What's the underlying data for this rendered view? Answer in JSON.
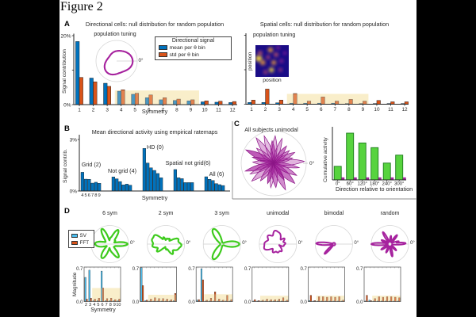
{
  "figure_label": "Figure 2",
  "colors": {
    "blue": "#0072BD",
    "orange": "#D95319",
    "cyan": "#4DBEEE",
    "green": "#57D33E",
    "green_edge": "#1B7A1B",
    "magenta": "#A6229E",
    "magenta_dark": "#8C1787",
    "shade": "#FAEECB",
    "axis": "#262626",
    "heatmap_bg": "#1A0C86"
  },
  "panels": {
    "A": {
      "label": "A",
      "left_title": "Directional cells: null distribution for random population",
      "right_title": "Spatial cells: null distribution for random population",
      "ylabel": "Signal contribution",
      "xlabel": "Symmetry",
      "inset_left": {
        "title": "population tuning",
        "zero_label": "0°"
      },
      "legend": {
        "title": "Directional signal",
        "items": [
          {
            "label": "mean per θ bin",
            "color": "#0072BD"
          },
          {
            "label": "std per θ bin",
            "color": "#D95319"
          }
        ]
      },
      "inset_right": {
        "title": "population tuning",
        "xlabel": "position",
        "ylabel": "position"
      }
    },
    "B": {
      "label": "B",
      "title": "Mean directional activity using empirical ratemaps",
      "ylabel": "Signal contrib.",
      "xlabel": "Symmetry"
    },
    "C": {
      "label": "C",
      "polar_title": "All subjects unimodal",
      "zero_label": "0°",
      "ylabel": "Cumulative activity",
      "xlabel": "Direction relative to orientation"
    },
    "D": {
      "label": "D",
      "legend": [
        {
          "label": "SV",
          "color": "#4DBEEE"
        },
        {
          "label": "FFT",
          "color": "#D95319"
        }
      ],
      "subplots": [
        "6 sym",
        "2 sym",
        "3 sym",
        "unimodal",
        "bimodal",
        "random"
      ],
      "zero_label": "0°",
      "ylabel": "Magnitude",
      "xlabel": "Symmetry"
    }
  },
  "chart_data": [
    {
      "id": "A_left",
      "type": "bar",
      "title": "Directional cells: null distribution for random population",
      "categories": [
        1,
        2,
        3,
        4,
        5,
        6,
        7,
        8,
        9,
        10,
        11,
        12
      ],
      "series": [
        {
          "name": "mean per θ bin",
          "color": "#0072BD",
          "values": [
            18.3,
            7.7,
            6.2,
            3.9,
            3.0,
            2.0,
            1.4,
            1.2,
            1.1,
            0.8,
            0.7,
            0.6
          ]
        },
        {
          "name": "std per θ bin",
          "color": "#D95319",
          "values": [
            7.9,
            6.6,
            5.3,
            4.3,
            3.3,
            2.8,
            2.0,
            1.6,
            1.4,
            1.1,
            1.0,
            0.9
          ]
        }
      ],
      "xlabel": "Symmetry",
      "ylabel": "Signal contribution",
      "ylim": [
        0,
        20
      ],
      "yticks": [
        "0%",
        "20%"
      ],
      "shade": {
        "from": 3.55,
        "to": 9.6,
        "top": 4.1
      }
    },
    {
      "id": "A_right",
      "type": "bar",
      "title": "Spatial cells: null distribution for random population",
      "categories": [
        1,
        2,
        3,
        4,
        5,
        6,
        7,
        8,
        9,
        10,
        11,
        12
      ],
      "series": [
        {
          "name": "mean per θ bin",
          "color": "#0072BD",
          "values": [
            0.5,
            0.5,
            0.4,
            0.3,
            0.3,
            0.3,
            0.3,
            0.2,
            0.2,
            0.2,
            0.2,
            0.2
          ]
        },
        {
          "name": "std per θ bin",
          "color": "#D95319",
          "values": [
            1.2,
            4.4,
            1.2,
            3.1,
            0.9,
            2.1,
            0.9,
            1.4,
            0.9,
            1.1,
            0.7,
            0.7
          ]
        }
      ],
      "ylim": [
        0,
        20
      ],
      "shade": {
        "from": 3.55,
        "to": 9.4,
        "top": 3.0
      }
    },
    {
      "id": "B",
      "type": "grouped-bar",
      "title": "Mean directional activity using empirical ratemaps",
      "sub_categories": [
        4,
        5,
        6,
        7,
        8,
        9
      ],
      "groups": [
        {
          "name": "Grid (2)",
          "values": [
            1.09,
            0.69,
            0.68,
            0.46,
            0.51,
            0.45
          ]
        },
        {
          "name": "Not grid (4)",
          "values": [
            0.82,
            0.71,
            0.55,
            0.36,
            0.4,
            0.34
          ]
        },
        {
          "name": "HD (0)",
          "values": [
            2.48,
            1.63,
            1.35,
            1.2,
            1.02,
            0.77
          ]
        },
        {
          "name": "Spatial not grid(6)",
          "values": [
            1.25,
            0.77,
            0.72,
            0.49,
            0.49,
            0.49
          ]
        },
        {
          "name": "All (6)",
          "values": [
            0.83,
            0.68,
            0.61,
            0.43,
            0.37,
            0.32
          ]
        }
      ],
      "xlabel": "Symmetry",
      "ylabel": "Signal contrib.",
      "ylim": [
        0,
        3
      ],
      "yticks": [
        "0%",
        "3%"
      ],
      "bar_color": "#0072BD"
    },
    {
      "id": "C",
      "type": "bar",
      "title": "All subjects unimodal",
      "categories": [
        "0°",
        "60°",
        "120°",
        "180°",
        "240°",
        "300°"
      ],
      "series": [
        {
          "name": "cumulative activity",
          "color": "#57D33E",
          "values": [
            0.29,
            1.0,
            0.79,
            0.69,
            0.36,
            0.53
          ]
        },
        {
          "name": "unimodal",
          "color": "#A6229E",
          "values": [
            0.05,
            0.05,
            0.05,
            0.05,
            0.05,
            0.05
          ]
        }
      ],
      "xlabel": "Direction relative to orientation",
      "ylabel": "Cumulative activity",
      "ylim": [
        0,
        1.1
      ]
    },
    {
      "id": "D0",
      "type": "bar",
      "title": "6 sym",
      "categories": [
        2,
        3,
        4,
        5,
        6,
        7,
        8,
        9,
        10
      ],
      "series": [
        {
          "name": "SV",
          "color": "#4DBEEE",
          "values": [
            0.5,
            0.65,
            0.02,
            0.02,
            0.63,
            0.02,
            0.02,
            0.02,
            0.02
          ]
        },
        {
          "name": "FFT",
          "color": "#D95319",
          "values": [
            0.05,
            0.07,
            0.05,
            0.07,
            0.28,
            0.06,
            0.07,
            0.04,
            0.05
          ]
        }
      ],
      "xlabel": "Symmetry",
      "ylabel": "Magnitude",
      "ylim": [
        0,
        0.7
      ],
      "yticks": [
        "0.0",
        "0.7"
      ],
      "shade": {
        "from": 3.5,
        "to": 10.5,
        "top": 0.28
      }
    },
    {
      "id": "D1",
      "type": "bar",
      "title": "2 sym",
      "categories": [
        2,
        3,
        4,
        5,
        6,
        7,
        8,
        9,
        10
      ],
      "series": [
        {
          "name": "SV",
          "color": "#4DBEEE",
          "values": [
            0.7,
            0.02,
            0.01,
            0.01,
            0.01,
            0.01,
            0.01,
            0.01,
            0.02
          ]
        },
        {
          "name": "FFT",
          "color": "#D95319",
          "values": [
            0.33,
            0.03,
            0.05,
            0.08,
            0.06,
            0.06,
            0.05,
            0.04,
            0.17
          ]
        }
      ],
      "ylim": [
        0,
        0.7
      ],
      "yticks": [
        "0.0",
        "0.7"
      ],
      "shade": {
        "from": 3.5,
        "to": 10.5,
        "top": 0.14
      }
    },
    {
      "id": "D2",
      "type": "bar",
      "title": "3 sym",
      "categories": [
        2,
        3,
        4,
        5,
        6,
        7,
        8,
        9,
        10
      ],
      "series": [
        {
          "name": "SV",
          "color": "#4DBEEE",
          "values": [
            0.03,
            0.68,
            0.01,
            0.01,
            0.01,
            0.01,
            0.01,
            0.01,
            0.01
          ]
        },
        {
          "name": "FFT",
          "color": "#D95319",
          "values": [
            0.04,
            0.45,
            0.03,
            0.07,
            0.2,
            0.05,
            0.03,
            0.13,
            0.04
          ]
        }
      ],
      "ylim": [
        0,
        0.7
      ],
      "yticks": [
        "0.0",
        "0.7"
      ],
      "shade": {
        "from": 3.5,
        "to": 10.5,
        "top": 0.15
      }
    },
    {
      "id": "D3",
      "type": "bar",
      "title": "unimodal",
      "categories": [
        2,
        3,
        4,
        5,
        6,
        7,
        8,
        9,
        10
      ],
      "series": [
        {
          "name": "SV",
          "color": "#4DBEEE",
          "values": [
            0.01,
            0.01,
            0.01,
            0.01,
            0.01,
            0.01,
            0.01,
            0.01,
            0.01
          ]
        },
        {
          "name": "FFT",
          "color": "#D95319",
          "values": [
            0.04,
            0.02,
            0.03,
            0.05,
            0.04,
            0.04,
            0.05,
            0.08,
            0.03
          ]
        }
      ],
      "ylim": [
        0,
        0.7
      ],
      "yticks": [
        "0.0",
        "0.7"
      ],
      "shade": {
        "from": 3.5,
        "to": 10.5,
        "top": 0.12
      }
    },
    {
      "id": "D4",
      "type": "bar",
      "title": "bimodal",
      "categories": [
        2,
        3,
        4,
        5,
        6,
        7,
        8,
        9,
        10
      ],
      "series": [
        {
          "name": "SV",
          "color": "#4DBEEE",
          "values": [
            0.02,
            0.01,
            0.01,
            0.01,
            0.01,
            0.01,
            0.01,
            0.01,
            0.01
          ]
        },
        {
          "name": "FFT",
          "color": "#D95319",
          "values": [
            0.13,
            0.02,
            0.1,
            0.1,
            0.09,
            0.1,
            0.09,
            0.1,
            0.03
          ]
        }
      ],
      "ylim": [
        0,
        0.7
      ],
      "yticks": [
        "0.0",
        "0.7"
      ],
      "shade": {
        "from": 3.5,
        "to": 10.5,
        "top": 0.12
      }
    },
    {
      "id": "D5",
      "type": "bar",
      "title": "random",
      "categories": [
        2,
        3,
        4,
        5,
        6,
        7,
        8,
        9,
        10
      ],
      "series": [
        {
          "name": "SV",
          "color": "#4DBEEE",
          "values": [
            0.01,
            0.03,
            0.01,
            0.01,
            0.01,
            0.01,
            0.01,
            0.01,
            0.01
          ]
        },
        {
          "name": "FFT",
          "color": "#D95319",
          "values": [
            0.13,
            0.02,
            0.06,
            0.1,
            0.09,
            0.1,
            0.1,
            0.09,
            0.08
          ]
        }
      ],
      "ylim": [
        0,
        0.7
      ],
      "yticks": [
        "0.0",
        "0.7"
      ],
      "shade": {
        "from": 3.5,
        "to": 10.5,
        "top": 0.12
      }
    }
  ]
}
